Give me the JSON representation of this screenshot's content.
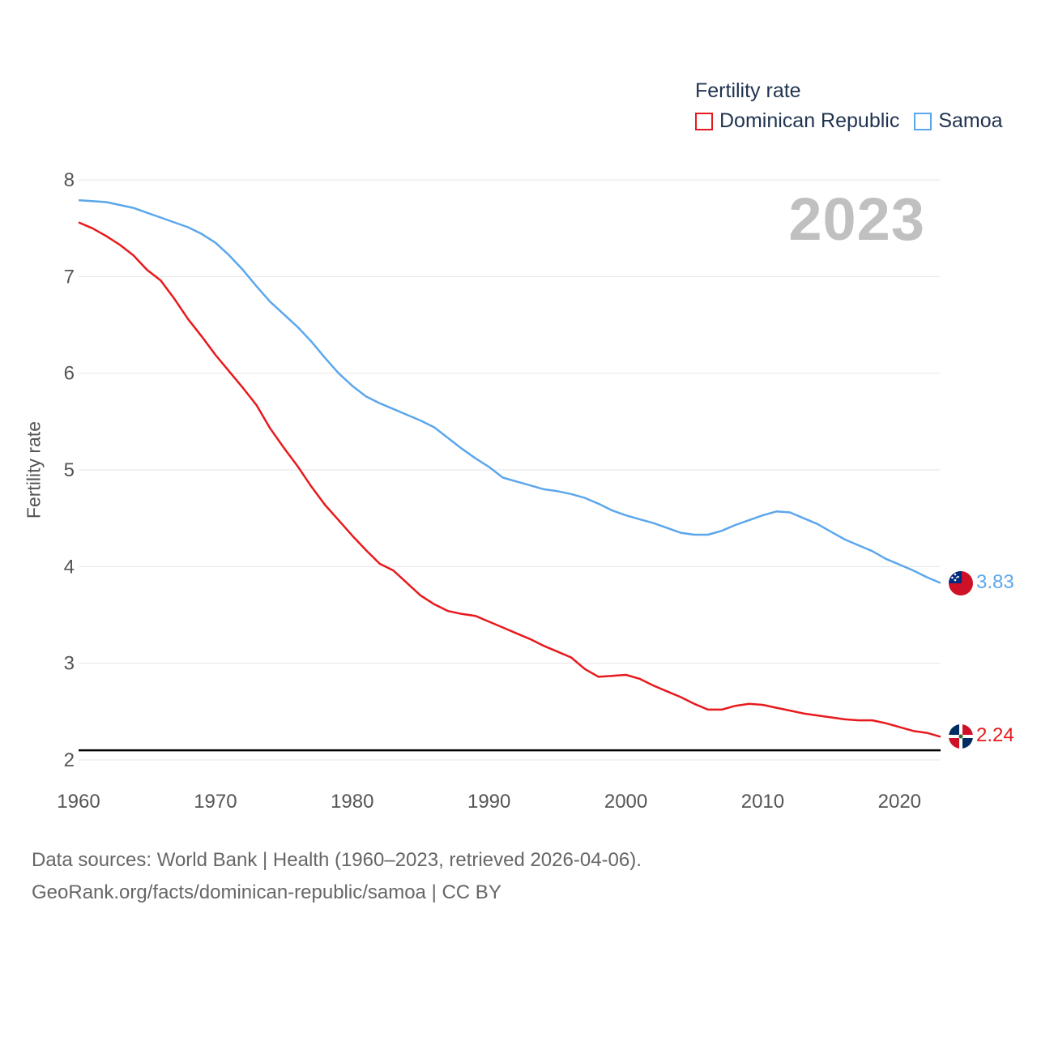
{
  "legend": {
    "title": "Fertility rate",
    "items": [
      {
        "label": "Dominican Republic",
        "color": "#e8191c"
      },
      {
        "label": "Samoa",
        "color": "#5ca7eb"
      }
    ]
  },
  "year_label": "2023",
  "end_labels": {
    "dominican_republic": "2.24",
    "samoa": "3.83"
  },
  "flags": {
    "dominican_republic": "dominican-republic-flag-icon",
    "samoa": "samoa-flag-icon"
  },
  "footer": {
    "line1": "Data sources: World Bank | Health (1960–2023, retrieved 2026-04-06).",
    "line2": "GeoRank.org/facts/dominican-republic/samoa | CC BY"
  },
  "chart_data": {
    "type": "line",
    "title": "Fertility rate",
    "xlabel": "",
    "ylabel": "Fertility rate",
    "xlim": [
      1960,
      2023
    ],
    "ylim": [
      2,
      8
    ],
    "x_ticks": [
      1960,
      1970,
      1980,
      1990,
      2000,
      2010,
      2020
    ],
    "y_ticks": [
      2,
      3,
      4,
      5,
      6,
      7,
      8
    ],
    "reference_line": 2.1,
    "x": [
      1960,
      1961,
      1962,
      1963,
      1964,
      1965,
      1966,
      1967,
      1968,
      1969,
      1970,
      1971,
      1972,
      1973,
      1974,
      1975,
      1976,
      1977,
      1978,
      1979,
      1980,
      1981,
      1982,
      1983,
      1984,
      1985,
      1986,
      1987,
      1988,
      1989,
      1990,
      1991,
      1992,
      1993,
      1994,
      1995,
      1996,
      1997,
      1998,
      1999,
      2000,
      2001,
      2002,
      2003,
      2004,
      2005,
      2006,
      2007,
      2008,
      2009,
      2010,
      2011,
      2012,
      2013,
      2014,
      2015,
      2016,
      2017,
      2018,
      2019,
      2020,
      2021,
      2022,
      2023
    ],
    "series": [
      {
        "name": "Dominican Republic",
        "color": "#e8191c",
        "values": [
          7.56,
          7.5,
          7.42,
          7.33,
          7.22,
          7.07,
          6.96,
          6.77,
          6.56,
          6.38,
          6.19,
          6.02,
          5.85,
          5.67,
          5.43,
          5.23,
          5.04,
          4.83,
          4.64,
          4.48,
          4.32,
          4.17,
          4.03,
          3.96,
          3.83,
          3.7,
          3.61,
          3.54,
          3.51,
          3.49,
          3.43,
          3.37,
          3.31,
          3.25,
          3.18,
          3.12,
          3.06,
          2.94,
          2.86,
          2.87,
          2.88,
          2.84,
          2.77,
          2.71,
          2.65,
          2.58,
          2.52,
          2.52,
          2.56,
          2.58,
          2.57,
          2.54,
          2.51,
          2.48,
          2.46,
          2.44,
          2.42,
          2.41,
          2.41,
          2.38,
          2.34,
          2.3,
          2.28,
          2.24
        ]
      },
      {
        "name": "Samoa",
        "color": "#5ca7eb",
        "values": [
          7.79,
          7.78,
          7.77,
          7.74,
          7.71,
          7.66,
          7.61,
          7.56,
          7.51,
          7.44,
          7.35,
          7.22,
          7.07,
          6.9,
          6.74,
          6.61,
          6.48,
          6.33,
          6.16,
          6.0,
          5.87,
          5.76,
          5.69,
          5.63,
          5.57,
          5.51,
          5.44,
          5.33,
          5.22,
          5.12,
          5.03,
          4.92,
          4.88,
          4.84,
          4.8,
          4.78,
          4.75,
          4.71,
          4.65,
          4.58,
          4.53,
          4.49,
          4.45,
          4.4,
          4.35,
          4.33,
          4.33,
          4.37,
          4.43,
          4.48,
          4.53,
          4.57,
          4.56,
          4.5,
          4.44,
          4.36,
          4.28,
          4.22,
          4.16,
          4.08,
          4.02,
          3.96,
          3.89,
          3.83
        ]
      }
    ]
  }
}
